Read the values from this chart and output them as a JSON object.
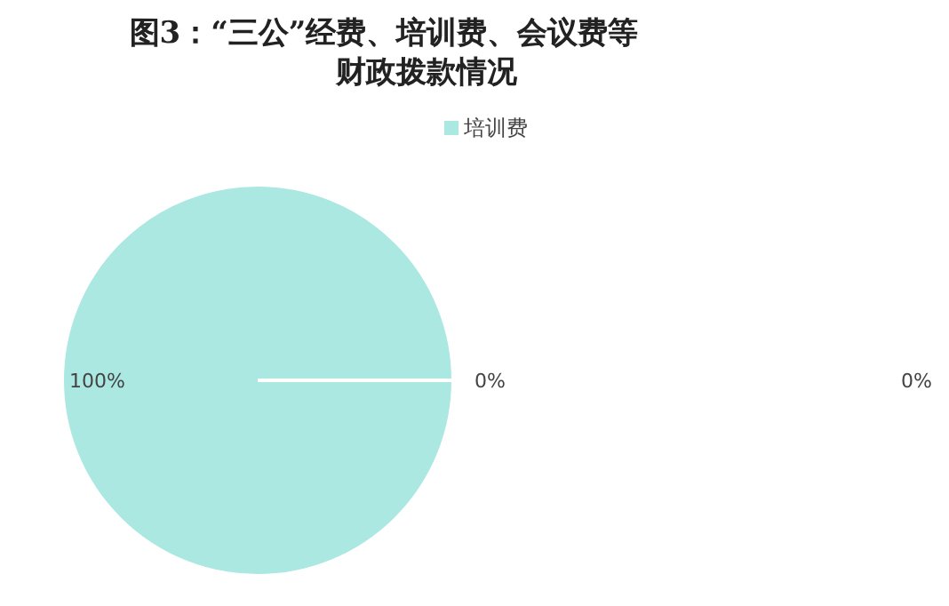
{
  "chart_data": {
    "type": "pie",
    "title": "图3：“三公”经费、培训费、会议费等财政拨款情况",
    "categories": [
      "培训费",
      null,
      null
    ],
    "values": [
      100,
      0,
      0
    ],
    "colors": [
      "#abe8e2",
      "#7fb3e0",
      "#f2b36b"
    ],
    "value_labels": [
      "100%",
      "0%",
      "0%"
    ],
    "legend": "top"
  }
}
